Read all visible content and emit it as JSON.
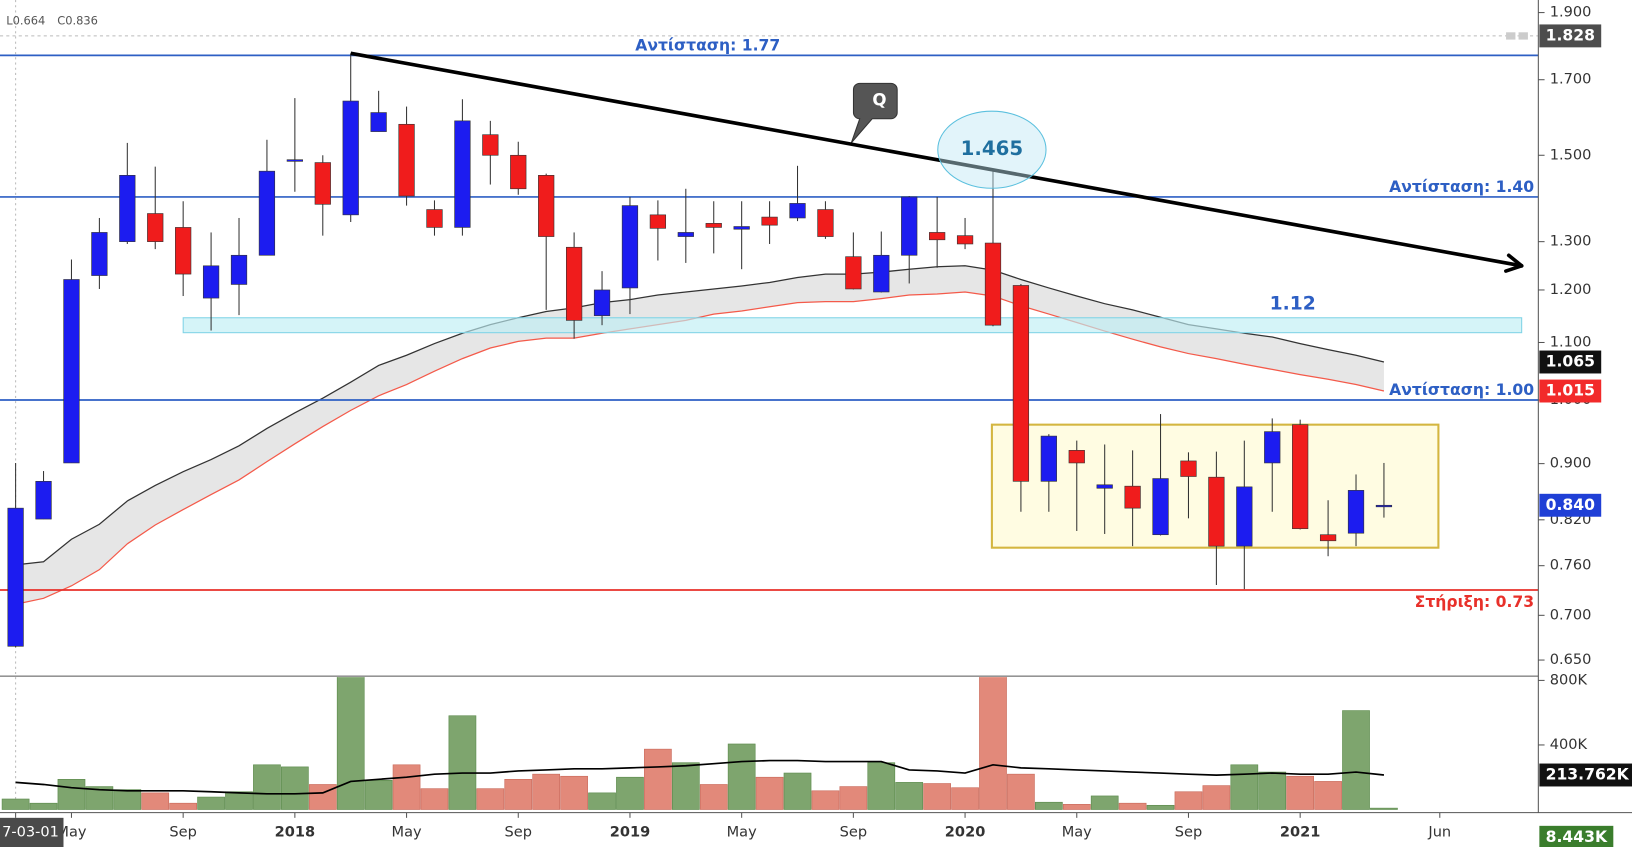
{
  "readout": [
    "L0.664",
    "C0.836"
  ],
  "chart_data": {
    "type": "candlestick",
    "categories": [
      "7-03-01",
      null,
      "May",
      null,
      null,
      null,
      "Sep",
      null,
      null,
      null,
      "2018",
      null,
      null,
      null,
      "May",
      null,
      null,
      null,
      "Sep",
      null,
      null,
      null,
      "2019",
      null,
      null,
      null,
      "May",
      null,
      null,
      null,
      "Sep",
      null,
      null,
      null,
      "2020",
      null,
      null,
      null,
      "May",
      null,
      null,
      null,
      "Sep",
      null,
      null,
      null,
      "2021",
      null,
      null,
      null,
      null,
      "Jun"
    ],
    "open": [
      0.665,
      0.821,
      0.901,
      1.229,
      1.3,
      1.362,
      1.331,
      1.184,
      1.211,
      1.271,
      1.485,
      1.482,
      1.359,
      1.56,
      1.579,
      1.371,
      1.331,
      1.552,
      1.5,
      1.451,
      1.288,
      1.15,
      1.204,
      1.359,
      1.311,
      1.34,
      1.327,
      1.354,
      1.352,
      1.371,
      1.268,
      1.196,
      1.271,
      1.32,
      1.313,
      1.297,
      1.209,
      0.874,
      0.92,
      0.864,
      0.867,
      0.8,
      0.904,
      0.88,
      0.785,
      0.901,
      0.96,
      0.8,
      0.802,
      0.838,
      null,
      null
    ],
    "high": [
      0.901,
      0.889,
      1.262,
      1.352,
      1.531,
      1.472,
      1.39,
      1.32,
      1.352,
      1.539,
      1.649,
      1.5,
      1.776,
      1.669,
      1.626,
      1.392,
      1.646,
      1.588,
      1.534,
      1.455,
      1.32,
      1.238,
      1.4,
      1.392,
      1.419,
      1.39,
      1.39,
      1.39,
      1.474,
      1.39,
      1.32,
      1.322,
      1.402,
      1.4,
      1.352,
      1.465,
      1.212,
      0.945,
      0.935,
      0.929,
      0.92,
      0.977,
      0.917,
      0.918,
      0.935,
      0.97,
      0.968,
      0.847,
      0.884,
      0.901,
      null,
      null
    ],
    "low": [
      0.664,
      0.821,
      0.901,
      1.202,
      1.295,
      1.284,
      1.188,
      1.122,
      1.151,
      1.271,
      1.412,
      1.313,
      1.343,
      1.56,
      1.38,
      1.313,
      1.313,
      1.429,
      1.405,
      1.161,
      1.107,
      1.132,
      1.153,
      1.26,
      1.255,
      1.275,
      1.242,
      1.295,
      1.345,
      1.306,
      1.201,
      1.195,
      1.213,
      1.245,
      1.284,
      1.13,
      0.831,
      0.831,
      0.805,
      0.801,
      0.785,
      0.799,
      0.822,
      0.736,
      0.731,
      0.831,
      0.807,
      0.772,
      0.785,
      0.823,
      null,
      null
    ],
    "close": [
      0.836,
      0.874,
      1.221,
      1.32,
      1.451,
      1.3,
      1.232,
      1.249,
      1.271,
      1.461,
      1.489,
      1.383,
      1.641,
      1.61,
      1.402,
      1.331,
      1.588,
      1.5,
      1.419,
      1.311,
      1.141,
      1.2,
      1.38,
      1.329,
      1.32,
      1.331,
      1.333,
      1.336,
      1.385,
      1.311,
      1.202,
      1.271,
      1.4,
      1.304,
      1.295,
      1.132,
      0.874,
      0.942,
      0.901,
      0.869,
      0.836,
      0.878,
      0.881,
      0.785,
      0.866,
      0.949,
      0.808,
      0.792,
      0.861,
      0.84,
      null,
      null
    ],
    "up_color": "#1c1cf0",
    "down_color": "#f01c1c",
    "log_scale": true,
    "ylim": [
      0.634,
      1.94
    ],
    "yticks": [
      {
        "value": 0.65,
        "label": "0.650"
      },
      {
        "value": 0.7,
        "label": "0.700"
      },
      {
        "value": 0.76,
        "label": "0.760"
      },
      {
        "value": 0.82,
        "label": "0.820"
      },
      {
        "value": 0.9,
        "label": "0.900"
      },
      {
        "value": 1.0,
        "label": "1.000"
      },
      {
        "value": 1.1,
        "label": "1.100"
      },
      {
        "value": 1.2,
        "label": "1.200"
      },
      {
        "value": 1.3,
        "label": "1.300"
      },
      {
        "value": 1.5,
        "label": "1.500"
      },
      {
        "value": 1.7,
        "label": "1.700"
      },
      {
        "value": 1.9,
        "label": "1.900"
      }
    ],
    "moving_averages": [
      {
        "color": "#333333",
        "values": [
          0.761,
          0.765,
          0.794,
          0.814,
          0.846,
          0.868,
          0.888,
          0.906,
          0.927,
          0.954,
          0.979,
          1.003,
          1.03,
          1.059,
          1.077,
          1.098,
          1.117,
          1.133,
          1.146,
          1.158,
          1.165,
          1.175,
          1.181,
          1.19,
          1.196,
          1.202,
          1.208,
          1.215,
          1.225,
          1.232,
          1.232,
          1.236,
          1.242,
          1.247,
          1.249,
          1.24,
          1.221,
          1.204,
          1.188,
          1.173,
          1.161,
          1.147,
          1.133,
          1.125,
          1.117,
          1.11,
          1.098,
          1.087,
          1.077,
          1.065,
          null,
          null
        ]
      },
      {
        "color": "#f45a4a",
        "values": [
          0.713,
          0.72,
          0.735,
          0.755,
          0.788,
          0.813,
          0.834,
          0.855,
          0.876,
          0.903,
          0.93,
          0.957,
          0.983,
          1.007,
          1.026,
          1.049,
          1.071,
          1.09,
          1.102,
          1.108,
          1.108,
          1.117,
          1.125,
          1.133,
          1.141,
          1.153,
          1.159,
          1.167,
          1.175,
          1.177,
          1.177,
          1.183,
          1.19,
          1.192,
          1.196,
          1.188,
          1.169,
          1.153,
          1.137,
          1.121,
          1.106,
          1.092,
          1.08,
          1.071,
          1.061,
          1.052,
          1.043,
          1.035,
          1.026,
          1.015,
          null,
          null
        ]
      }
    ],
    "ma_band_color": "#e6e6e6",
    "levels": [
      {
        "value": 1.77,
        "label": "Αντίσταση: 1.77",
        "color": "#2d5fc4",
        "label_align": "center",
        "label_side": "above"
      },
      {
        "value": 1.4,
        "label": "Αντίσταση: 1.40",
        "color": "#2d5fc4",
        "label_align": "right",
        "label_side": "above"
      },
      {
        "value": 1.0,
        "label": "Αντίσταση: 1.00",
        "color": "#2d5fc4",
        "label_align": "right",
        "label_side": "above"
      },
      {
        "value": 0.73,
        "label": "Στήριξη: 0.73",
        "color": "#e8302a",
        "label_align": "right",
        "label_side": "below"
      }
    ],
    "zones": [
      {
        "y0": 1.118,
        "y1": 1.146,
        "label": "1.12",
        "fill": "#bfeef5",
        "stroke": "#7fd3e6"
      },
      {
        "y0": 0.783,
        "y1": 0.96,
        "fill": "#fffbd2",
        "stroke": "#d4b640"
      }
    ],
    "trendline": {
      "from": 1.776,
      "to": 1.249,
      "color": "#000000"
    },
    "highlight": {
      "value": 1.465
    },
    "callout": "Q",
    "price_labels": [
      {
        "value": 1.828,
        "color": "#4d4d4d"
      },
      {
        "value": 1.065,
        "color": "#111111"
      },
      {
        "value": 1.015,
        "color": "#f22a2a"
      },
      {
        "value": 0.84,
        "label": "0.840",
        "color": "#1f3fd6"
      }
    ],
    "volume": {
      "values": [
        65000,
        39000,
        187000,
        142000,
        123000,
        103000,
        39000,
        77000,
        110000,
        277000,
        264000,
        155000,
        850000,
        181000,
        277000,
        129000,
        581000,
        129000,
        187000,
        219000,
        206000,
        103000,
        200000,
        374000,
        290000,
        155000,
        406000,
        200000,
        226000,
        116000,
        142000,
        290000,
        168000,
        161000,
        135000,
        850000,
        219000,
        45000,
        32000,
        84000,
        39000,
        26000,
        110000,
        148000,
        277000,
        232000,
        206000,
        174000,
        613000,
        8443,
        null,
        null
      ],
      "up_color": "#7ea56e",
      "down_color": "#e2897a",
      "ylim": [
        0,
        820000
      ],
      "yticks": [
        {
          "value": 400000,
          "label": "400K"
        },
        {
          "value": 800000,
          "label": "800K"
        }
      ],
      "ma": [
        168000,
        155000,
        135000,
        123000,
        116000,
        116000,
        116000,
        110000,
        103000,
        97000,
        97000,
        103000,
        174000,
        187000,
        200000,
        219000,
        226000,
        226000,
        239000,
        245000,
        252000,
        252000,
        258000,
        264000,
        271000,
        284000,
        297000,
        303000,
        303000,
        297000,
        297000,
        297000,
        245000,
        239000,
        226000,
        277000,
        258000,
        252000,
        245000,
        239000,
        232000,
        226000,
        219000,
        213000,
        219000,
        226000,
        219000,
        219000,
        232000,
        213762,
        null,
        null
      ],
      "ma_color": "#000000",
      "labels": [
        {
          "value": 213762,
          "label": "213.762K",
          "color": "#111111"
        },
        {
          "value": 8443,
          "label": "8.443K",
          "color": "#3a7d2c"
        }
      ]
    }
  }
}
